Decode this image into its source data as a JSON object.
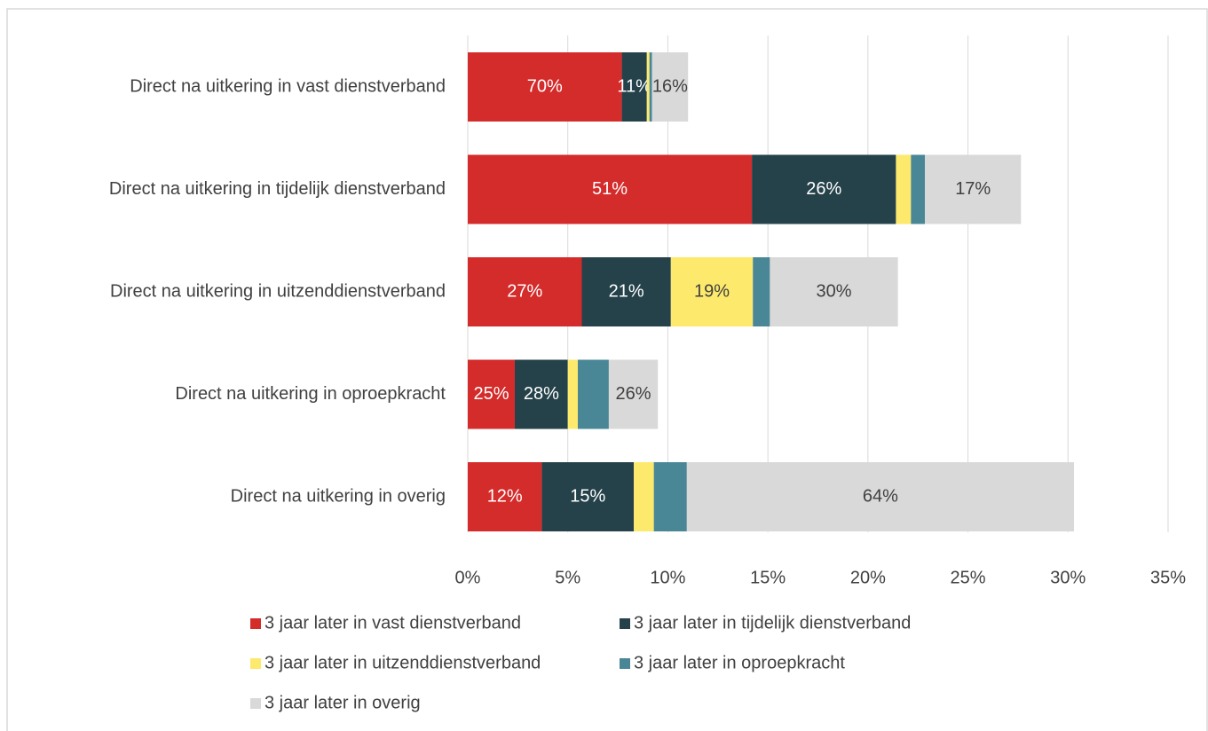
{
  "chart_data": {
    "type": "stacked-barh",
    "categories": [
      "Direct na uitkering in vast dienstverband",
      "Direct na uitkering in tijdelijk dienstverband",
      "Direct na uitkering in uitzenddienstverband",
      "Direct na uitkering in oproepkracht",
      "Direct na uitkering in overig"
    ],
    "series": [
      {
        "name": "3 jaar later in vast dienstverband",
        "color": "#d42b2b",
        "values": [
          7.7,
          14.2,
          5.7,
          2.35,
          3.7
        ],
        "labels": [
          "70%",
          "51%",
          "27%",
          "25%",
          "12%"
        ]
      },
      {
        "name": "3 jaar later in tijdelijk dienstverband",
        "color": "#25424a",
        "values": [
          1.25,
          7.2,
          4.45,
          2.65,
          4.6
        ],
        "labels": [
          "11%",
          "26%",
          "21%",
          "28%",
          "15%"
        ]
      },
      {
        "name": "3 jaar later in uitzenddienstverband",
        "color": "#fde96c",
        "values": [
          0.13,
          0.75,
          4.1,
          0.5,
          1.0
        ],
        "labels": [
          null,
          null,
          "19%",
          null,
          null
        ]
      },
      {
        "name": "3 jaar later in oproepkracht",
        "color": "#4a8796",
        "values": [
          0.13,
          0.7,
          0.85,
          1.55,
          1.65
        ],
        "labels": [
          null,
          null,
          null,
          null,
          null
        ]
      },
      {
        "name": "3 jaar later in overig",
        "color": "#d9d9d9",
        "values": [
          1.8,
          4.8,
          6.4,
          2.45,
          19.35
        ],
        "labels": [
          "16%",
          "17%",
          "30%",
          "26%",
          "64%"
        ]
      }
    ],
    "label_colors": [
      "#ffffff",
      "#ffffff",
      "#404040",
      "#404040",
      "#404040"
    ],
    "xlim": [
      0,
      35
    ],
    "xticks": [
      {
        "value": 0,
        "label": "0%"
      },
      {
        "value": 5,
        "label": "5%"
      },
      {
        "value": 10,
        "label": "10%"
      },
      {
        "value": 15,
        "label": "15%"
      },
      {
        "value": 20,
        "label": "20%"
      },
      {
        "value": 25,
        "label": "25%"
      },
      {
        "value": 30,
        "label": "30%"
      },
      {
        "value": 35,
        "label": "35%"
      }
    ],
    "grid": true,
    "legend": "bottom"
  }
}
